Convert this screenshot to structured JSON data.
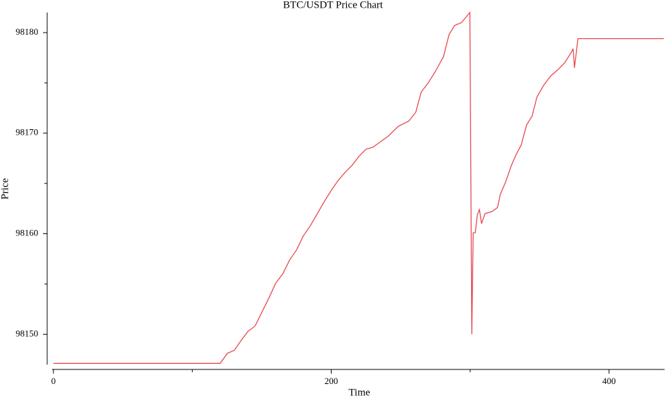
{
  "chart_data": {
    "type": "line",
    "title": "BTC/USDT Price Chart",
    "x_label": "Time",
    "y_label": "Price",
    "color": "#e8474f",
    "x": [
      0,
      120,
      125.2,
      130.2,
      135.2,
      140.1,
      145.1,
      150.1,
      155.1,
      160.1,
      165.1,
      170.1,
      175.1,
      180,
      185,
      190,
      195,
      200,
      205,
      210,
      215,
      220,
      225,
      230,
      235,
      241,
      248.4,
      255.9,
      260.9,
      264.8,
      269.8,
      274.8,
      280.8,
      284.8,
      288.8,
      293.8,
      299.8,
      301.2,
      302.2,
      303.7,
      305.2,
      306.7,
      308.2,
      310.7,
      315.7,
      319.7,
      321.7,
      325.7,
      329.7,
      333.2,
      336.7,
      340.6,
      344.6,
      348.1,
      353.1,
      358.1,
      363.1,
      368.1,
      373.1,
      374.1,
      375.1,
      377.6,
      439.4
    ],
    "values": [
      98147.1,
      98147.1,
      98148.1,
      98148.4,
      98149.4,
      98150.3,
      98150.8,
      98152.2,
      98153.6,
      98155.1,
      98156.0,
      98157.4,
      98158.4,
      98159.8,
      98160.8,
      98162.0,
      98163.2,
      98164.3,
      98165.3,
      98166.1,
      98166.8,
      98167.7,
      98168.4,
      98168.6,
      98169.1,
      98169.7,
      98170.7,
      98171.2,
      98172.1,
      98174.1,
      98175.0,
      98176.1,
      98177.6,
      98179.8,
      98180.7,
      98181.0,
      98182.0,
      98150.0,
      98160.1,
      98160.1,
      98161.9,
      98162.4,
      98161.0,
      98162.0,
      98162.2,
      98162.6,
      98163.9,
      98165.2,
      98166.8,
      98167.9,
      98168.8,
      98170.8,
      98171.7,
      98173.6,
      98174.8,
      98175.7,
      98176.3,
      98177.0,
      98178.1,
      98178.4,
      98176.5,
      98179.4,
      98179.4
    ],
    "xlim": [
      -4.5,
      440
    ],
    "xticks": [
      0,
      200,
      400
    ],
    "x_minor_ticks": [
      100,
      300
    ],
    "ylim": [
      98146.5,
      98182
    ],
    "yticks": [
      98150,
      98160,
      98170,
      98180
    ],
    "y_minor_ticks": [
      98155,
      98165,
      98175
    ],
    "grid": false
  }
}
